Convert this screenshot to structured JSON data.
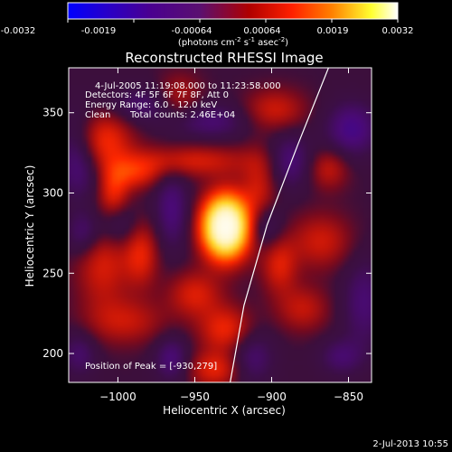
{
  "colorbar": {
    "tick_labels": [
      "-0.0032",
      "-0.0019",
      "-0.00064",
      "0.00064",
      "0.0019",
      "0.0032"
    ],
    "unit_main": "(photons cm",
    "unit_exp1": "-2",
    "unit_mid": " s",
    "unit_exp2": "-1",
    "unit_mid2": " asec",
    "unit_exp3": "-2",
    "unit_end": ")"
  },
  "annotations": {
    "time_range": "4-Jul-2005 11:19:08.000 to 11:23:58.000",
    "detectors": "Detectors: 4F 5F 6F 7F 8F, Att 0",
    "energy": "Energy Range: 6.0 - 12.0 keV",
    "clean_label": "Clean",
    "total_counts": "Total counts: 2.46E+04",
    "peak": "Position of Peak = [-930,279]"
  },
  "footer_date": "2-Jul-2013 10:55",
  "chart_data": {
    "type": "heatmap",
    "title": "Reconstructed RHESSI Image",
    "xlabel": "Heliocentric X (arcsec)",
    "ylabel": "Heliocentric Y (arcsec)",
    "xlim": [
      -1032,
      -835
    ],
    "ylim": [
      182,
      378
    ],
    "x_ticks": [
      -1000,
      -950,
      -900,
      -850
    ],
    "x_tick_labels": [
      "−1000",
      "−950",
      "−900",
      "−850"
    ],
    "y_ticks": [
      200,
      250,
      300,
      350
    ],
    "y_tick_labels": [
      "200",
      "250",
      "300",
      "350"
    ],
    "colormap": "red-temperature",
    "cmin": -0.0032,
    "cmax": 0.0032,
    "peak_position": [
      -930,
      279
    ],
    "blobs": [
      {
        "x": -930,
        "y": 279,
        "sx": 10,
        "sy": 13,
        "a": 3.2
      },
      {
        "x": -955,
        "y": 320,
        "sx": 30,
        "sy": 7,
        "a": 0.55
      },
      {
        "x": -1012,
        "y": 333,
        "sx": 14,
        "sy": 12,
        "a": 0.8
      },
      {
        "x": -990,
        "y": 312,
        "sx": 12,
        "sy": 7,
        "a": 0.55
      },
      {
        "x": -1003,
        "y": 300,
        "sx": 7,
        "sy": 11,
        "a": 0.6
      },
      {
        "x": -1010,
        "y": 257,
        "sx": 12,
        "sy": 20,
        "a": 0.55
      },
      {
        "x": -985,
        "y": 262,
        "sx": 8,
        "sy": 14,
        "a": 0.6
      },
      {
        "x": -995,
        "y": 220,
        "sx": 18,
        "sy": 10,
        "a": 0.45
      },
      {
        "x": -950,
        "y": 237,
        "sx": 12,
        "sy": 10,
        "a": 0.55
      },
      {
        "x": -930,
        "y": 215,
        "sx": 12,
        "sy": 10,
        "a": 0.65
      },
      {
        "x": -937,
        "y": 190,
        "sx": 12,
        "sy": 8,
        "a": 0.6
      },
      {
        "x": -908,
        "y": 300,
        "sx": 8,
        "sy": 18,
        "a": 0.5
      },
      {
        "x": -895,
        "y": 255,
        "sx": 8,
        "sy": 12,
        "a": 0.55
      },
      {
        "x": -868,
        "y": 270,
        "sx": 14,
        "sy": 12,
        "a": 0.5
      },
      {
        "x": -863,
        "y": 315,
        "sx": 9,
        "sy": 9,
        "a": 0.45
      },
      {
        "x": -898,
        "y": 352,
        "sx": 14,
        "sy": 9,
        "a": 0.5
      },
      {
        "x": -880,
        "y": 228,
        "sx": 12,
        "sy": 10,
        "a": 0.45
      },
      {
        "x": -960,
        "y": 360,
        "sx": 10,
        "sy": 10,
        "a": 0.4
      },
      {
        "x": -1025,
        "y": 325,
        "sx": 10,
        "sy": 18,
        "a": -0.7
      },
      {
        "x": -1022,
        "y": 275,
        "sx": 8,
        "sy": 10,
        "a": -0.5
      },
      {
        "x": -1000,
        "y": 280,
        "sx": 9,
        "sy": 10,
        "a": -0.45
      },
      {
        "x": -965,
        "y": 290,
        "sx": 8,
        "sy": 18,
        "a": -0.5
      },
      {
        "x": -965,
        "y": 197,
        "sx": 8,
        "sy": 10,
        "a": -0.5
      },
      {
        "x": -905,
        "y": 280,
        "sx": 8,
        "sy": 10,
        "a": -0.55
      },
      {
        "x": -888,
        "y": 320,
        "sx": 10,
        "sy": 12,
        "a": -0.5
      },
      {
        "x": -848,
        "y": 340,
        "sx": 12,
        "sy": 12,
        "a": -0.6
      },
      {
        "x": -840,
        "y": 232,
        "sx": 10,
        "sy": 20,
        "a": -0.45
      },
      {
        "x": -913,
        "y": 198,
        "sx": 10,
        "sy": 12,
        "a": -0.45
      },
      {
        "x": -940,
        "y": 345,
        "sx": 18,
        "sy": 8,
        "a": -0.45
      },
      {
        "x": -985,
        "y": 355,
        "sx": 14,
        "sy": 8,
        "a": -0.4
      },
      {
        "x": -1025,
        "y": 200,
        "sx": 8,
        "sy": 10,
        "a": -0.4
      },
      {
        "x": -855,
        "y": 198,
        "sx": 10,
        "sy": 8,
        "a": -0.4
      }
    ],
    "limb_curve": {
      "x": [
        -863,
        -883,
        -903,
        -918,
        -927
      ],
      "y": [
        378,
        330,
        280,
        230,
        182
      ]
    }
  }
}
